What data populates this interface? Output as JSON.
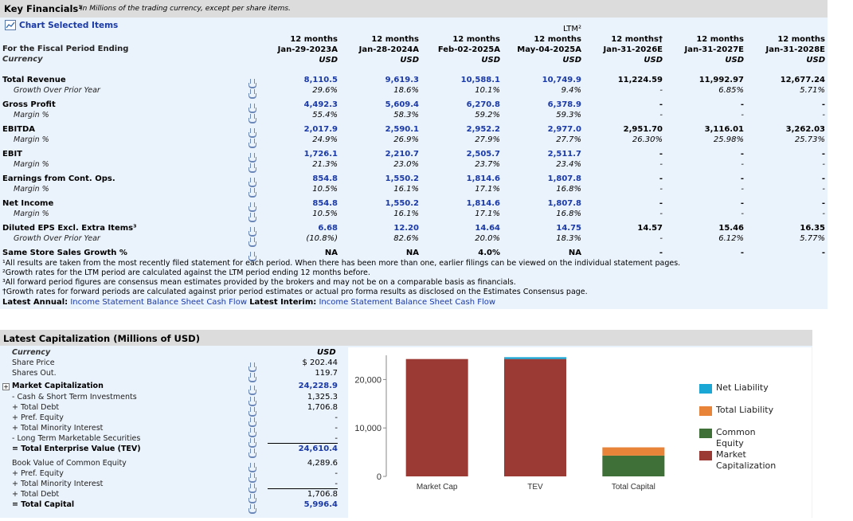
{
  "key_financials": {
    "title": "Key Financials¹",
    "subtitle": "In Millions of the trading currency, except per share items.",
    "chart_selected": "Chart Selected Items",
    "fiscal_label": "For the Fiscal Period Ending",
    "currency_label": "Currency",
    "columns": [
      {
        "top": "",
        "period": "12 months",
        "date": "Jan-29-2023A",
        "currency": "USD"
      },
      {
        "top": "",
        "period": "12 months",
        "date": "Jan-28-2024A",
        "currency": "USD"
      },
      {
        "top": "",
        "period": "12 months",
        "date": "Feb-02-2025A",
        "currency": "USD"
      },
      {
        "top": "LTM²",
        "period": "12 months",
        "date": "May-04-2025A",
        "currency": "USD"
      },
      {
        "top": "",
        "period": "12 months†",
        "date": "Jan-31-2026E",
        "currency": "USD"
      },
      {
        "top": "",
        "period": "12 months",
        "date": "Jan-31-2027E",
        "currency": "USD"
      },
      {
        "top": "",
        "period": "12 months",
        "date": "Jan-31-2028E",
        "currency": "USD"
      }
    ],
    "rows": [
      {
        "label": "Total Revenue",
        "sub": "Growth Over Prior Year",
        "values": [
          "8,110.5",
          "9,619.3",
          "10,588.1",
          "10,749.9",
          "11,224.59",
          "11,992.97",
          "12,677.24"
        ],
        "subs": [
          "29.6%",
          "18.6%",
          "10.1%",
          "9.4%",
          "-",
          "6.85%",
          "5.71%"
        ]
      },
      {
        "label": "Gross Profit",
        "sub": "Margin %",
        "values": [
          "4,492.3",
          "5,609.4",
          "6,270.8",
          "6,378.9",
          "-",
          "-",
          "-"
        ],
        "subs": [
          "55.4%",
          "58.3%",
          "59.2%",
          "59.3%",
          "-",
          "-",
          "-"
        ]
      },
      {
        "label": "EBITDA",
        "sub": "Margin %",
        "values": [
          "2,017.9",
          "2,590.1",
          "2,952.2",
          "2,977.0",
          "2,951.70",
          "3,116.01",
          "3,262.03"
        ],
        "subs": [
          "24.9%",
          "26.9%",
          "27.9%",
          "27.7%",
          "26.30%",
          "25.98%",
          "25.73%"
        ]
      },
      {
        "label": "EBIT",
        "sub": "Margin %",
        "values": [
          "1,726.1",
          "2,210.7",
          "2,505.7",
          "2,511.7",
          "-",
          "-",
          "-"
        ],
        "subs": [
          "21.3%",
          "23.0%",
          "23.7%",
          "23.4%",
          "-",
          "-",
          "-"
        ]
      },
      {
        "label": "Earnings from Cont. Ops.",
        "sub": "Margin %",
        "values": [
          "854.8",
          "1,550.2",
          "1,814.6",
          "1,807.8",
          "-",
          "-",
          "-"
        ],
        "subs": [
          "10.5%",
          "16.1%",
          "17.1%",
          "16.8%",
          "-",
          "-",
          "-"
        ]
      },
      {
        "label": "Net Income",
        "sub": "Margin %",
        "values": [
          "854.8",
          "1,550.2",
          "1,814.6",
          "1,807.8",
          "-",
          "-",
          "-"
        ],
        "subs": [
          "10.5%",
          "16.1%",
          "17.1%",
          "16.8%",
          "-",
          "-",
          "-"
        ]
      },
      {
        "label": "Diluted EPS Excl. Extra Items³",
        "sub": "Growth Over Prior Year",
        "values": [
          "6.68",
          "12.20",
          "14.64",
          "14.75",
          "14.57",
          "15.46",
          "16.35"
        ],
        "subs": [
          "(10.8%)",
          "82.6%",
          "20.0%",
          "18.3%",
          "-",
          "6.12%",
          "5.77%"
        ]
      }
    ],
    "same_store": {
      "label": "Same Store Sales Growth %",
      "values": [
        "NA",
        "NA",
        "4.0%",
        "NA",
        "-",
        "-",
        "-"
      ]
    },
    "notes": [
      "¹All results are taken from the most recently filed statement for each period. When there has been more than one, earlier filings can be viewed on the individual statement pages.",
      "²Growth rates for the LTM period are calculated against the LTM period ending 12 months before.",
      "³All forward period figures are consensus mean estimates provided by the brokers and may not be on a comparable basis as financials.",
      "†Growth rates for forward periods are calculated against prior period estimates or actual pro forma results as disclosed on the Estimates Consensus page."
    ],
    "latest_annual_label": "Latest Annual:",
    "latest_annual_links": [
      "Income Statement",
      "Balance Sheet",
      "Cash Flow"
    ],
    "latest_interim_label": "Latest Interim:",
    "latest_interim_links": [
      "Income Statement",
      "Balance Sheet",
      "Cash Flow"
    ]
  },
  "capitalization": {
    "title": "Latest Capitalization (Millions of USD)",
    "currency_label": "Currency",
    "currency_value": "USD",
    "rows": [
      {
        "label": "Share Price",
        "value": "$ 202.44"
      },
      {
        "label": "Shares Out.",
        "value": "119.7"
      },
      {
        "label": "Market Capitalization",
        "value": "24,228.9"
      },
      {
        "label": "- Cash & Short Term Investments",
        "value": "1,325.3"
      },
      {
        "label": "+ Total Debt",
        "value": "1,706.8"
      },
      {
        "label": "+ Pref. Equity",
        "value": "-"
      },
      {
        "label": "+ Total Minority Interest",
        "value": "-"
      },
      {
        "label": "- Long Term Marketable Securities",
        "value": "-"
      },
      {
        "label": "= Total Enterprise Value (TEV)",
        "value": "24,610.4"
      },
      {
        "label": "Book Value of Common Equity",
        "value": "4,289.6"
      },
      {
        "label": "+ Pref. Equity",
        "value": "-"
      },
      {
        "label": "+ Total Minority Interest",
        "value": "-"
      },
      {
        "label": "+ Total Debt",
        "value": "1,706.8"
      },
      {
        "label": "= Total Capital",
        "value": "5,996.4"
      }
    ]
  },
  "chart_data": {
    "type": "bar",
    "stacked": true,
    "categories": [
      "Market Cap",
      "TEV",
      "Total Capital"
    ],
    "ylim": [
      0,
      25000
    ],
    "yticks": [
      "0",
      "10,000",
      "20,000"
    ],
    "ytick_values": [
      0,
      10000,
      20000
    ],
    "series": [
      {
        "name": "Market Capitalization",
        "color": "#9b3a34",
        "values": [
          24228.9,
          24228.9,
          0
        ]
      },
      {
        "name": "Common Equity",
        "color": "#3f7037",
        "values": [
          0,
          0,
          4289.6
        ]
      },
      {
        "name": "Total Liability",
        "color": "#e8843a",
        "values": [
          0,
          0,
          1706.8
        ]
      },
      {
        "name": "Net Liability",
        "color": "#1aa7d6",
        "values": [
          0,
          381.5,
          0
        ]
      }
    ],
    "legend": [
      "Net Liability",
      "Total Liability",
      "Common Equity",
      "Market Capitalization"
    ],
    "legend_position": "right",
    "grid": false
  }
}
